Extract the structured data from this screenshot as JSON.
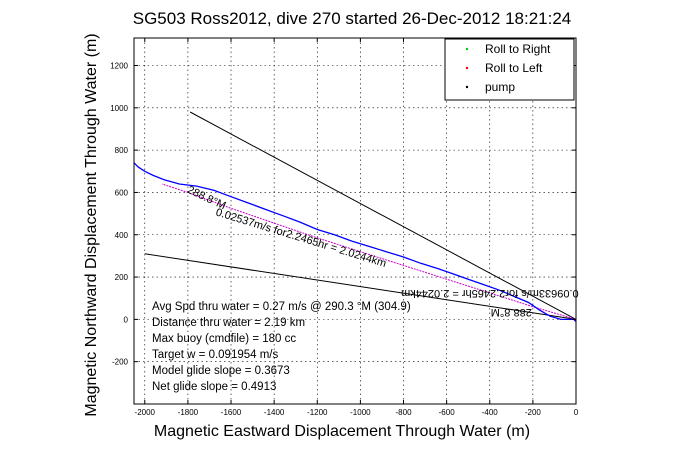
{
  "chart_data": {
    "type": "line",
    "title": "SG503 Ross2012, dive 270 started 26-Dec-2012 18:21:24",
    "xlabel": "Magnetic Eastward Displacement Through Water (m)",
    "ylabel": "Magnetic Northward Displacement Through Water (m)",
    "xlim": [
      -2050,
      0
    ],
    "ylim": [
      -400,
      1330
    ],
    "xticks": [
      -2000,
      -1800,
      -1600,
      -1400,
      -1200,
      -1000,
      -800,
      -600,
      -400,
      -200,
      0
    ],
    "yticks": [
      -200,
      0,
      200,
      400,
      600,
      800,
      1000,
      1200
    ],
    "grid": true,
    "legend_position": "top-right",
    "legend": [
      "Roll to Right",
      "Roll to Left",
      "pump"
    ],
    "colors": {
      "right": "#00cc00",
      "left": "#ff0000",
      "pump": "#000000",
      "track": "#0000ff",
      "model": "#cc00cc"
    },
    "track": {
      "x": [
        0,
        -10,
        -30,
        -70,
        -120,
        -170,
        -220,
        -290,
        -360,
        -430,
        -500,
        -570,
        -640,
        -720,
        -800,
        -880,
        -960,
        -1040,
        -1120,
        -1200,
        -1280,
        -1360,
        -1440,
        -1520,
        -1600,
        -1680,
        -1760,
        -1840,
        -1910,
        -1960,
        -2000,
        -2030,
        -2050
      ],
      "y": [
        -10,
        0,
        0,
        0,
        15,
        45,
        80,
        110,
        140,
        165,
        190,
        215,
        240,
        265,
        295,
        320,
        345,
        370,
        400,
        425,
        460,
        490,
        520,
        550,
        580,
        610,
        630,
        640,
        660,
        680,
        700,
        720,
        740
      ]
    },
    "model_track": {
      "x": [
        0,
        -200,
        -400,
        -600,
        -800,
        -1000,
        -1200,
        -1400,
        -1600,
        -1800,
        -1920
      ],
      "y": [
        0,
        60,
        125,
        190,
        255,
        320,
        385,
        455,
        525,
        600,
        640
      ]
    },
    "dive_vector": {
      "x": [
        0,
        -1790
      ],
      "y": [
        0,
        980
      ]
    },
    "current_vector": {
      "x": [
        0,
        -2000
      ],
      "y": [
        0,
        310
      ]
    },
    "rotated_labels": [
      {
        "text": "288.8°M",
        "x": -1720,
        "y": 560,
        "rotate": 25
      },
      {
        "text": "0.02537m/s for2.2465hr = 2.0244km",
        "x": -1280,
        "y": 370,
        "rotate": 17
      },
      {
        "text": "0.09633m/s for2.2465hr = 2.0244km",
        "x": -400,
        "y": 140,
        "rotate": 180
      },
      {
        "text": "288.8°M",
        "x": -300,
        "y": 50,
        "rotate": 180
      }
    ],
    "annotations": [
      "Avg Spd thru water =  0.27 m/s @ 290.3   °M (304.9)",
      "Distance thru water =  2.19 km",
      "Max buoy (cmdfile) = 180 cc",
      "Target w = 0.091954 m/s",
      "Model glide slope = 0.3673",
      "Net glide slope = 0.4913"
    ]
  }
}
